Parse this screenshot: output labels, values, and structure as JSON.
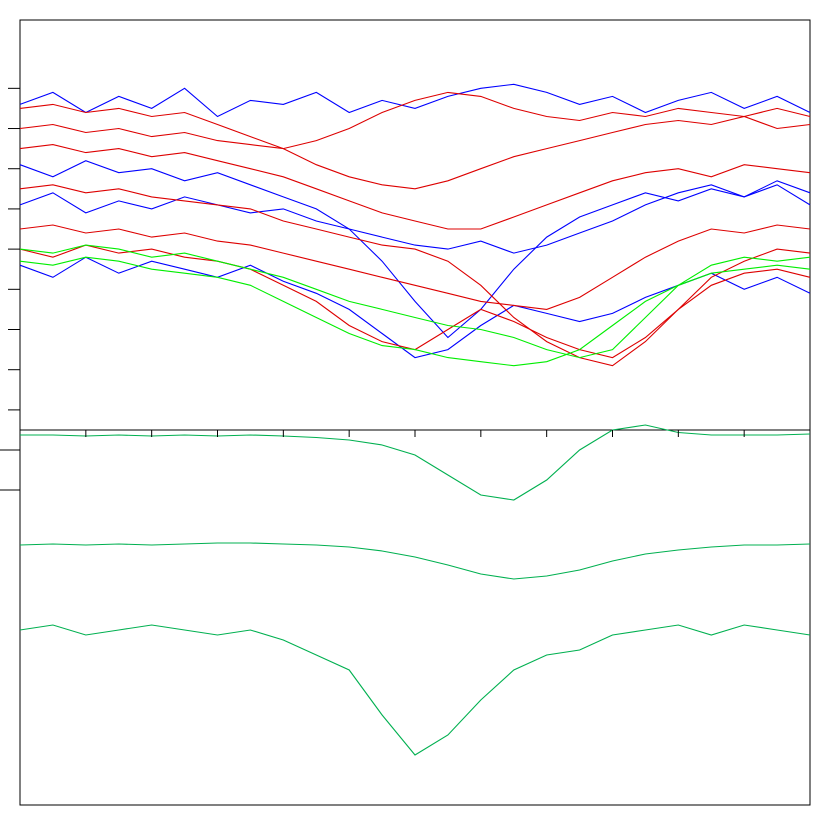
{
  "chart_data": [
    {
      "type": "line",
      "x": [
        0,
        0.5,
        1,
        1.5,
        2,
        2.5,
        3,
        3.5,
        4,
        4.5,
        5,
        5.5,
        6,
        6.5,
        7,
        7.5,
        8,
        8.5,
        9,
        9.5,
        10,
        10.5,
        11,
        11.5,
        12
      ],
      "xlim": [
        0,
        12
      ],
      "ylim": [
        0,
        10.2
      ],
      "yticks": [
        0.5,
        1.5,
        2.5,
        3.5,
        4.5,
        5.5,
        6.5,
        7.5,
        8.5
      ],
      "series": [
        {
          "color": "#0000ff",
          "values": [
            8.1,
            8.4,
            7.9,
            8.3,
            8.0,
            8.5,
            7.8,
            8.2,
            8.1,
            8.4,
            7.9,
            8.2,
            8.0,
            8.3,
            8.5,
            8.6,
            8.4,
            8.1,
            8.3,
            7.9,
            8.2,
            8.4,
            8.0,
            8.3,
            7.9
          ]
        },
        {
          "color": "#0000ff",
          "values": [
            6.6,
            6.3,
            6.7,
            6.4,
            6.5,
            6.2,
            6.4,
            6.1,
            5.8,
            5.5,
            5.0,
            4.2,
            3.2,
            2.3,
            3.0,
            4.0,
            4.8,
            5.3,
            5.6,
            5.9,
            5.7,
            6.0,
            5.8,
            6.1,
            5.6
          ]
        },
        {
          "color": "#0000ff",
          "values": [
            5.6,
            5.9,
            5.4,
            5.7,
            5.5,
            5.8,
            5.6,
            5.4,
            5.5,
            5.2,
            5.0,
            4.8,
            4.6,
            4.5,
            4.7,
            4.4,
            4.6,
            4.9,
            5.2,
            5.6,
            5.9,
            6.1,
            5.8,
            6.2,
            5.9
          ]
        },
        {
          "color": "#0000ff",
          "values": [
            4.1,
            3.8,
            4.3,
            3.9,
            4.2,
            4.0,
            3.8,
            4.1,
            3.7,
            3.4,
            3.0,
            2.4,
            1.8,
            2.0,
            2.6,
            3.1,
            2.9,
            2.7,
            2.9,
            3.3,
            3.6,
            3.9,
            3.5,
            3.8,
            3.4
          ]
        },
        {
          "color": "#dd0000",
          "values": [
            8.0,
            8.1,
            7.9,
            8.0,
            7.8,
            7.9,
            7.6,
            7.3,
            7.0,
            6.6,
            6.3,
            6.1,
            6.0,
            6.2,
            6.5,
            6.8,
            7.0,
            7.2,
            7.4,
            7.6,
            7.7,
            7.6,
            7.8,
            7.5,
            7.6
          ]
        },
        {
          "color": "#dd0000",
          "values": [
            7.5,
            7.6,
            7.4,
            7.5,
            7.3,
            7.4,
            7.2,
            7.1,
            7.0,
            7.2,
            7.5,
            7.9,
            8.2,
            8.4,
            8.3,
            8.0,
            7.8,
            7.7,
            7.9,
            7.8,
            8.0,
            7.9,
            7.8,
            8.0,
            7.8
          ]
        },
        {
          "color": "#dd0000",
          "values": [
            6.0,
            6.1,
            5.9,
            6.0,
            5.8,
            5.7,
            5.6,
            5.5,
            5.2,
            5.0,
            4.8,
            4.6,
            4.5,
            4.2,
            3.6,
            2.8,
            2.2,
            1.8,
            1.6,
            2.2,
            3.0,
            3.8,
            4.2,
            4.5,
            4.4
          ]
        },
        {
          "color": "#dd0000",
          "values": [
            4.5,
            4.3,
            4.6,
            4.4,
            4.5,
            4.3,
            4.2,
            4.0,
            3.6,
            3.2,
            2.6,
            2.2,
            2.0,
            2.5,
            3.0,
            2.7,
            2.3,
            2.0,
            1.8,
            2.3,
            3.0,
            3.6,
            3.9,
            4.0,
            3.8
          ]
        },
        {
          "color": "#dd0000",
          "values": [
            7.0,
            7.1,
            6.9,
            7.0,
            6.8,
            6.9,
            6.7,
            6.5,
            6.3,
            6.0,
            5.7,
            5.4,
            5.2,
            5.0,
            5.0,
            5.3,
            5.6,
            5.9,
            6.2,
            6.4,
            6.5,
            6.3,
            6.6,
            6.5,
            6.4
          ]
        },
        {
          "color": "#dd0000",
          "values": [
            5.0,
            5.1,
            4.9,
            5.0,
            4.8,
            4.9,
            4.7,
            4.6,
            4.4,
            4.2,
            4.0,
            3.8,
            3.6,
            3.4,
            3.2,
            3.1,
            3.0,
            3.3,
            3.8,
            4.3,
            4.7,
            5.0,
            4.9,
            5.1,
            5.0
          ]
        },
        {
          "color": "#00ee00",
          "values": [
            4.5,
            4.4,
            4.6,
            4.5,
            4.3,
            4.4,
            4.2,
            4.0,
            3.8,
            3.5,
            3.2,
            3.0,
            2.8,
            2.6,
            2.5,
            2.3,
            2.0,
            1.8,
            2.0,
            2.8,
            3.6,
            4.1,
            4.3,
            4.2,
            4.3
          ]
        },
        {
          "color": "#00ee00",
          "values": [
            4.2,
            4.1,
            4.3,
            4.2,
            4.0,
            3.9,
            3.8,
            3.6,
            3.2,
            2.8,
            2.4,
            2.1,
            2.0,
            1.8,
            1.7,
            1.6,
            1.7,
            2.0,
            2.6,
            3.2,
            3.6,
            3.9,
            4.0,
            4.1,
            4.0
          ]
        }
      ]
    },
    {
      "type": "line",
      "x": [
        0,
        0.5,
        1,
        1.5,
        2,
        2.5,
        3,
        3.5,
        4,
        4.5,
        5,
        5.5,
        6,
        6.5,
        7,
        7.5,
        8,
        8.5,
        9,
        9.5,
        10,
        10.5,
        11,
        11.5,
        12
      ],
      "xlim": [
        0,
        12
      ],
      "xticks": [
        1,
        2,
        3,
        4,
        5,
        6,
        7,
        8,
        9,
        10,
        11
      ],
      "ylim": [
        0,
        7.5
      ],
      "yticks": [
        6.3,
        7.1
      ],
      "series": [
        {
          "color": "#00b050",
          "values": [
            7.4,
            7.4,
            7.38,
            7.4,
            7.38,
            7.4,
            7.38,
            7.4,
            7.38,
            7.35,
            7.3,
            7.2,
            7.0,
            6.6,
            6.2,
            6.1,
            6.5,
            7.1,
            7.5,
            7.6,
            7.45,
            7.4,
            7.4,
            7.4,
            7.42
          ]
        },
        {
          "color": "#00b050",
          "values": [
            5.2,
            5.22,
            5.2,
            5.22,
            5.2,
            5.22,
            5.24,
            5.24,
            5.22,
            5.2,
            5.16,
            5.08,
            4.96,
            4.8,
            4.62,
            4.52,
            4.58,
            4.7,
            4.88,
            5.02,
            5.1,
            5.16,
            5.2,
            5.2,
            5.22
          ]
        },
        {
          "color": "#00b050",
          "values": [
            3.5,
            3.6,
            3.4,
            3.5,
            3.6,
            3.5,
            3.4,
            3.5,
            3.3,
            3.0,
            2.7,
            1.8,
            1.0,
            1.4,
            2.1,
            2.7,
            3.0,
            3.1,
            3.4,
            3.5,
            3.6,
            3.4,
            3.6,
            3.5,
            3.4
          ]
        }
      ]
    }
  ]
}
